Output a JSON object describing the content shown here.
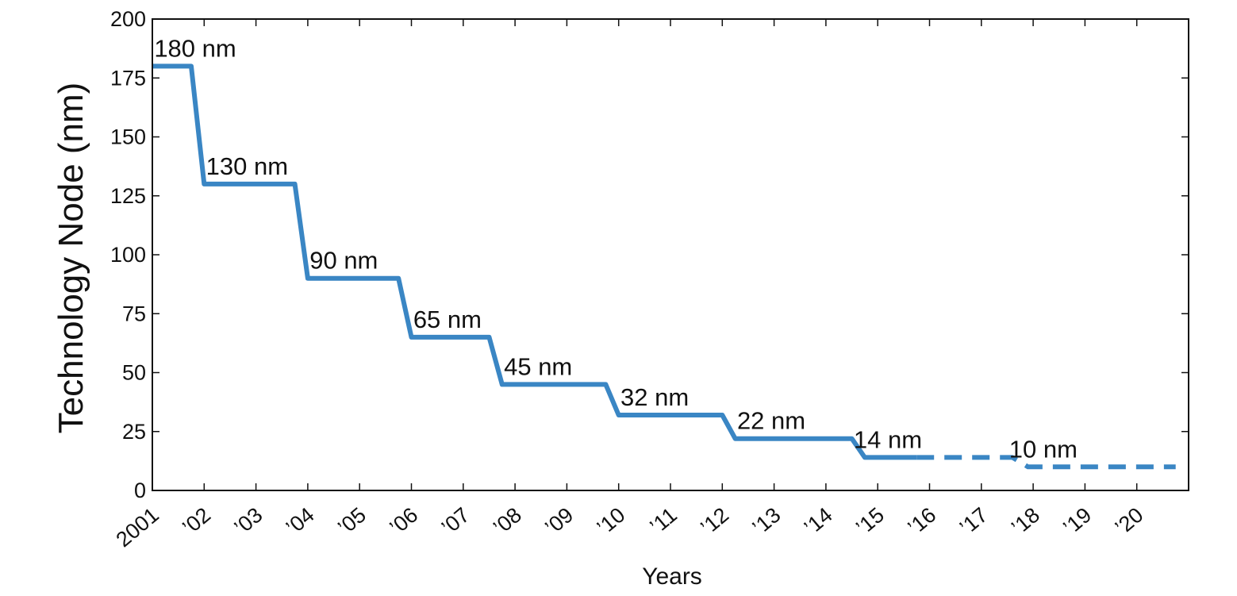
{
  "chart_data": {
    "type": "line",
    "title": "",
    "xlabel": "Years",
    "ylabel": "Technology Node (nm)",
    "xlim": [
      2001,
      2021
    ],
    "ylim": [
      0,
      200
    ],
    "yticks": [
      0,
      25,
      50,
      75,
      100,
      125,
      150,
      175,
      200
    ],
    "xticks": [
      {
        "value": 2001,
        "label": "2001"
      },
      {
        "value": 2002,
        "label": "’02"
      },
      {
        "value": 2003,
        "label": "’03"
      },
      {
        "value": 2004,
        "label": "’04"
      },
      {
        "value": 2005,
        "label": "’05"
      },
      {
        "value": 2006,
        "label": "’06"
      },
      {
        "value": 2007,
        "label": "’07"
      },
      {
        "value": 2008,
        "label": "’08"
      },
      {
        "value": 2009,
        "label": "’09"
      },
      {
        "value": 2010,
        "label": "’10"
      },
      {
        "value": 2011,
        "label": "’11"
      },
      {
        "value": 2012,
        "label": "’12"
      },
      {
        "value": 2013,
        "label": "’13"
      },
      {
        "value": 2014,
        "label": "’14"
      },
      {
        "value": 2015,
        "label": "’15"
      },
      {
        "value": 2016,
        "label": "’16"
      },
      {
        "value": 2017,
        "label": "’17"
      },
      {
        "value": 2018,
        "label": "’18"
      },
      {
        "value": 2019,
        "label": "’19"
      },
      {
        "value": 2020,
        "label": "’20"
      }
    ],
    "grid": false,
    "line_color": "#3a86c4",
    "series": [
      {
        "style": "solid",
        "points": [
          [
            2001,
            180
          ],
          [
            2001.75,
            180
          ],
          [
            2002,
            130
          ],
          [
            2003.75,
            130
          ],
          [
            2004,
            90
          ],
          [
            2005.75,
            90
          ],
          [
            2006,
            65
          ],
          [
            2007.5,
            65
          ],
          [
            2007.75,
            45
          ],
          [
            2009.75,
            45
          ],
          [
            2010,
            32
          ],
          [
            2012,
            32
          ],
          [
            2012.25,
            22
          ],
          [
            2014.5,
            22
          ],
          [
            2014.75,
            14
          ],
          [
            2015.75,
            14
          ]
        ]
      },
      {
        "style": "dashed",
        "points": [
          [
            2015.75,
            14
          ],
          [
            2017.6,
            14
          ],
          [
            2017.9,
            10
          ],
          [
            2020.75,
            10
          ]
        ]
      }
    ],
    "annotations": [
      {
        "text": "180 nm",
        "x": 2001.25,
        "y": 180
      },
      {
        "text": "130 nm",
        "x": 2002.25,
        "y": 130
      },
      {
        "text": "90 nm",
        "x": 2004.25,
        "y": 90
      },
      {
        "text": "65 nm",
        "x": 2006.25,
        "y": 65
      },
      {
        "text": "45 nm",
        "x": 2008.0,
        "y": 45
      },
      {
        "text": "32 nm",
        "x": 2010.25,
        "y": 32
      },
      {
        "text": "22 nm",
        "x": 2012.5,
        "y": 22
      },
      {
        "text": "14 nm",
        "x": 2014.75,
        "y": 14
      },
      {
        "text": "10 nm",
        "x": 2017.75,
        "y": 10
      }
    ]
  }
}
